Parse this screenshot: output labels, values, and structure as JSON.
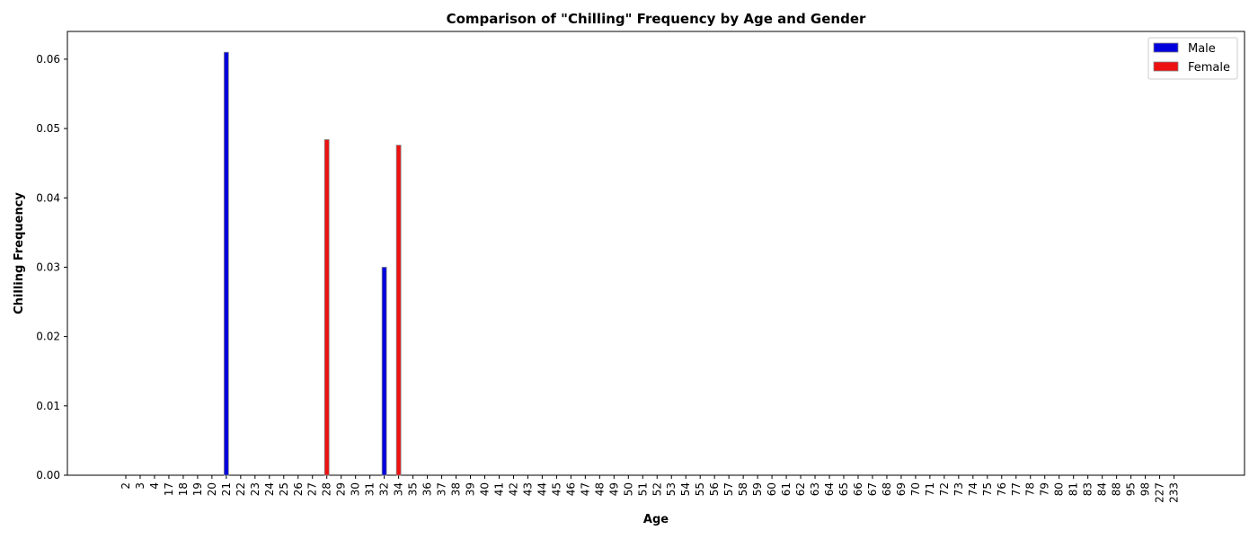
{
  "chart_data": {
    "type": "bar",
    "title": "Comparison of \"Chilling\" Frequency by Age and Gender",
    "xlabel": "Age",
    "ylabel": "Chilling Frequency",
    "ylim": [
      0,
      0.064
    ],
    "yticks": [
      "0.00",
      "0.01",
      "0.02",
      "0.03",
      "0.04",
      "0.05",
      "0.06"
    ],
    "grid": false,
    "legend_position": "top-right",
    "categories": [
      "2",
      "3",
      "4",
      "17",
      "18",
      "19",
      "20",
      "21",
      "22",
      "23",
      "24",
      "25",
      "26",
      "27",
      "28",
      "29",
      "30",
      "31",
      "32",
      "34",
      "35",
      "36",
      "37",
      "38",
      "39",
      "40",
      "41",
      "42",
      "43",
      "44",
      "45",
      "46",
      "47",
      "48",
      "49",
      "50",
      "51",
      "52",
      "53",
      "54",
      "55",
      "56",
      "57",
      "58",
      "59",
      "60",
      "61",
      "62",
      "63",
      "64",
      "65",
      "66",
      "67",
      "68",
      "69",
      "70",
      "71",
      "72",
      "73",
      "74",
      "75",
      "76",
      "77",
      "78",
      "79",
      "80",
      "81",
      "83",
      "84",
      "88",
      "95",
      "98",
      "227",
      "233"
    ],
    "series": [
      {
        "name": "Male",
        "color": "#0000dd",
        "values": [
          0,
          0,
          0,
          0,
          0,
          0,
          0,
          0.061,
          0,
          0,
          0,
          0,
          0,
          0,
          0,
          0,
          0,
          0,
          0.03,
          0,
          0,
          0,
          0,
          0,
          0,
          0,
          0,
          0,
          0,
          0,
          0,
          0,
          0,
          0,
          0,
          0,
          0,
          0,
          0,
          0,
          0,
          0,
          0,
          0,
          0,
          0,
          0,
          0,
          0,
          0,
          0,
          0,
          0,
          0,
          0,
          0,
          0,
          0,
          0,
          0,
          0,
          0,
          0,
          0,
          0,
          0,
          0,
          0,
          0,
          0,
          0,
          0,
          0,
          0
        ]
      },
      {
        "name": "Female",
        "color": "#ee1111",
        "values": [
          0,
          0,
          0,
          0,
          0,
          0,
          0,
          0,
          0,
          0,
          0,
          0,
          0,
          0,
          0.0484,
          0,
          0,
          0,
          0,
          0.0476,
          0,
          0,
          0,
          0,
          0,
          0,
          0,
          0,
          0,
          0,
          0,
          0,
          0,
          0,
          0,
          0,
          0,
          0,
          0,
          0,
          0,
          0,
          0,
          0,
          0,
          0,
          0,
          0,
          0,
          0,
          0,
          0,
          0,
          0,
          0,
          0,
          0,
          0,
          0,
          0,
          0,
          0,
          0,
          0,
          0,
          0,
          0,
          0,
          0,
          0,
          0,
          0,
          0,
          0
        ]
      }
    ]
  }
}
